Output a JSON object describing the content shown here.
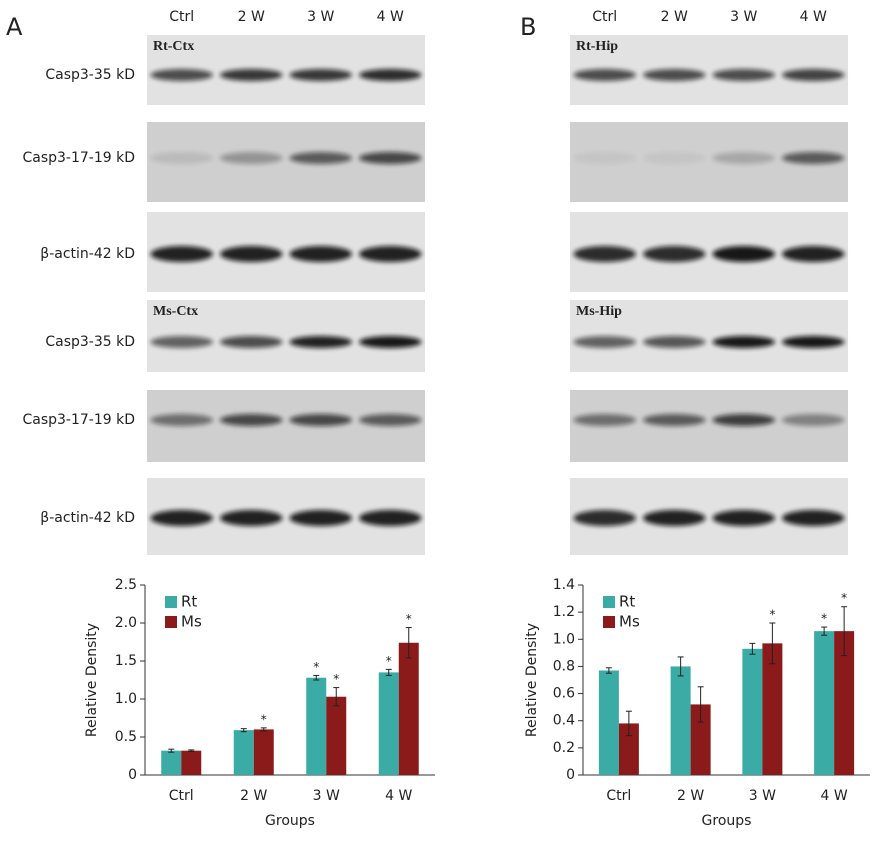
{
  "panels": [
    {
      "label": "A",
      "lanes": [
        "Ctrl",
        "2 W",
        "3 W",
        "4 W"
      ],
      "tags": [
        "Rt-Ctx",
        "Ms-Ctx"
      ]
    },
    {
      "label": "B",
      "lanes": [
        "Ctrl",
        "2 W",
        "3 W",
        "4 W"
      ],
      "tags": [
        "Rt-Hip",
        "Ms-Hip"
      ]
    }
  ],
  "blot_labels": [
    "Casp3-35 kD",
    "Casp3-17-19 kD",
    "β-actin-42 kD",
    "Casp3-35 kD",
    "Casp3-17-19 kD",
    "β-actin-42 kD"
  ],
  "chart_data": [
    {
      "type": "bar",
      "ylabel": "Relative Density",
      "xlabel": "Groups",
      "categories": [
        "Ctrl",
        "2 W",
        "3 W",
        "4 W"
      ],
      "ylim": [
        0,
        2.5
      ],
      "yticks": [
        0,
        0.5,
        {
          "value": 1,
          "label": "1.0"
        },
        1.5,
        {
          "value": 2,
          "label": "2.0"
        },
        2.5
      ],
      "legend": "upper left",
      "series": [
        {
          "name": "Rt",
          "color": "#3aaba5",
          "values": [
            0.32,
            0.59,
            1.28,
            1.35
          ],
          "errors": [
            0.02,
            0.02,
            0.03,
            0.04
          ],
          "significance": [
            null,
            null,
            "*",
            "*"
          ]
        },
        {
          "name": "Ms",
          "color": "#8b1a1a",
          "values": [
            0.32,
            0.6,
            1.03,
            1.74
          ],
          "errors": [
            0.01,
            0.02,
            0.12,
            0.2
          ],
          "significance": [
            null,
            "*",
            "*",
            "*"
          ]
        }
      ]
    },
    {
      "type": "bar",
      "ylabel": "Relative Density",
      "xlabel": "Groups",
      "categories": [
        "Ctrl",
        "2 W",
        "3 W",
        "4 W"
      ],
      "ylim": [
        0,
        1.4
      ],
      "yticks": [
        0,
        0.2,
        0.4,
        0.6,
        0.8,
        {
          "value": 1,
          "label": "1.0"
        },
        1.2,
        1.4
      ],
      "legend": "upper left",
      "series": [
        {
          "name": "Rt",
          "color": "#3aaba5",
          "values": [
            0.77,
            0.8,
            0.93,
            1.06
          ],
          "errors": [
            0.02,
            0.07,
            0.04,
            0.03
          ],
          "significance": [
            null,
            null,
            null,
            "*"
          ]
        },
        {
          "name": "Ms",
          "color": "#8b1a1a",
          "values": [
            0.38,
            0.52,
            0.97,
            1.06
          ],
          "errors": [
            0.09,
            0.13,
            0.15,
            0.18
          ],
          "significance": [
            null,
            null,
            "*",
            "*"
          ]
        }
      ]
    }
  ]
}
